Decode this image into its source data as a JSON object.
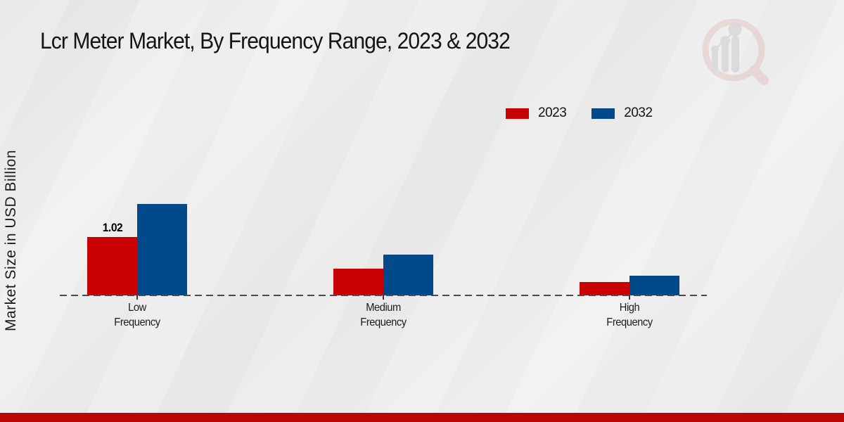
{
  "chart_data": {
    "type": "bar",
    "title": "Lcr Meter Market, By Frequency Range, 2023 & 2032",
    "ylabel": "Market Size in USD Billion",
    "xlabel": "",
    "categories": [
      "Low Frequency",
      "Medium Frequency",
      "High Frequency"
    ],
    "series": [
      {
        "name": "2023",
        "color": "#c80202",
        "values": [
          1.02,
          0.47,
          0.23
        ]
      },
      {
        "name": "2032",
        "color": "#004a8c",
        "values": [
          1.6,
          0.71,
          0.34
        ]
      }
    ],
    "ylim": [
      0,
      1.8
    ],
    "grid": false,
    "legend_position": "top-right",
    "baseline_style": "dashed",
    "data_labels": [
      {
        "series": "2023",
        "category": "Low Frequency",
        "text": "1.02"
      }
    ]
  },
  "watermark": {
    "icon": "market-research-future-magnifier-bars-logo"
  },
  "accent": {
    "footer_band_color": "#b90606",
    "background_color": "#e8e8e8"
  }
}
